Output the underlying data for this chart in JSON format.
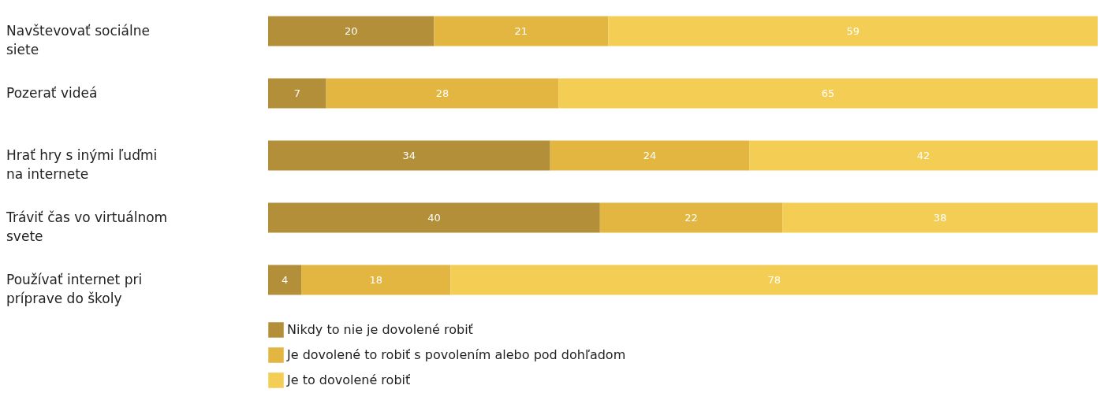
{
  "chart_data": {
    "type": "bar",
    "orientation": "horizontal",
    "stacked": true,
    "data_labels": true,
    "legend": "bottom",
    "grid": false,
    "categories": [
      "Navštevovať sociálne siete",
      "Pozerať videá",
      "Hrať hry s inými ľuďmi na internete",
      "Tráviť čas vo virtuálnom svete",
      "Používať internet pri príprave do školy"
    ],
    "series": [
      {
        "name": "Nikdy to nie je dovolené robiť",
        "color": "#b38f3a",
        "values": [
          20,
          7,
          34,
          40,
          4
        ]
      },
      {
        "name": "Je dovolené to robiť s povolením alebo pod dohľadom",
        "color": "#e2b640",
        "values": [
          21,
          28,
          24,
          22,
          18
        ]
      },
      {
        "name": "Je to dovolené robiť",
        "color": "#f4cd55",
        "values": [
          59,
          65,
          42,
          38,
          78
        ]
      }
    ]
  }
}
